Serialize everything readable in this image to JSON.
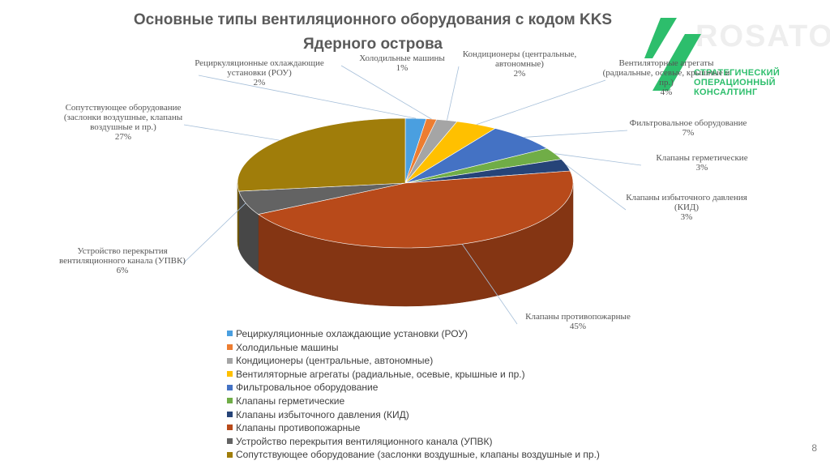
{
  "title_line1": "Основные типы вентиляционного оборудования с кодом KKS",
  "title_line2": "Ядерного острова",
  "page_number": "8",
  "logo": {
    "watermark": "ROSATOM",
    "line1": "СТРАТЕГИЧЕСКИЙ",
    "line2": "ОПЕРАЦИОННЫЙ",
    "line3": "КОНСАЛТИНГ",
    "color": "#2dbe6c"
  },
  "chart_data": {
    "type": "pie",
    "slices": [
      {
        "name": "Рециркуляционные охлаждающие установки (РОУ)",
        "value": 2,
        "label": [
          "Рециркуляционные охлаждающие",
          "установки (РОУ)",
          "2%"
        ],
        "color": "#4a9fe0"
      },
      {
        "name": "Холодильные машины",
        "value": 1,
        "label": [
          "Холодильные машины",
          "1%"
        ],
        "color": "#ed7d31"
      },
      {
        "name": "Кондиционеры (центральные, автономные)",
        "value": 2,
        "label": [
          "Кондиционеры (центральные,",
          "автономные)",
          "2%"
        ],
        "color": "#a5a5a5"
      },
      {
        "name": "Вентиляторные агрегаты (радиальные, осевые, крышные и пр.)",
        "value": 4,
        "label": [
          "Вентиляторные агрегаты",
          "(радиальные, осевые, крышные и",
          "пр.)",
          "4%"
        ],
        "color": "#ffc000"
      },
      {
        "name": "Фильтровальное оборудование",
        "value": 7,
        "label": [
          "Фильтровальное оборудование",
          "7%"
        ],
        "color": "#4472c4"
      },
      {
        "name": "Клапаны герметические",
        "value": 3,
        "label": [
          "Клапаны герметические",
          "3%"
        ],
        "color": "#70ad47"
      },
      {
        "name": "Клапаны избыточного давления (КИД)",
        "value": 3,
        "label": [
          "Клапаны избыточного давления",
          "(КИД)",
          "3%"
        ],
        "color": "#264478"
      },
      {
        "name": "Клапаны противопожарные",
        "value": 45,
        "label": [
          "Клапаны противопожарные",
          "45%"
        ],
        "color": "#b84a1a"
      },
      {
        "name": "Устройство перекрытия вентиляционного канала (УПВК)",
        "value": 6,
        "label": [
          "Устройство перекрытия",
          "вентиляционного канала (УПВК)",
          "6%"
        ],
        "color": "#636363"
      },
      {
        "name": "Сопутствующее оборудование (заслонки воздушные, клапаны воздушные и пр.)",
        "value": 27,
        "label": [
          "Сопутствующее оборудование",
          "(заслонки воздушные, клапаны",
          "воздушные и пр.)",
          "27%"
        ],
        "color": "#a07d0a"
      }
    ],
    "legend_position": "bottom-left"
  }
}
